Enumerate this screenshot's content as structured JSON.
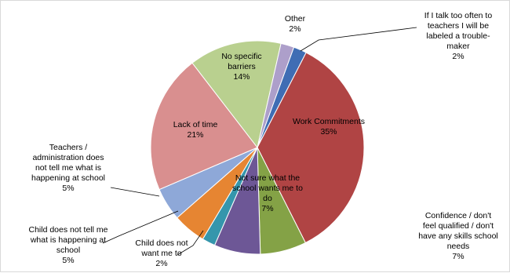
{
  "chart_data": {
    "type": "pie",
    "title": "",
    "legend": "none",
    "slices": [
      {
        "name": "If I talk too often to teachers I will be labeled a trouble-maker",
        "label_lines": [
          "If I talk too often to",
          "teachers I will be",
          "labeled a trouble-",
          "maker"
        ],
        "value": 2,
        "value_label": "2%",
        "color": "#3f6db4"
      },
      {
        "name": "Work Commitments",
        "label_lines": [
          "Work Commitments"
        ],
        "value": 35,
        "value_label": "35%",
        "color": "#b04444"
      },
      {
        "name": "Confidence / don't feel qualified / don't have any skills school needs",
        "label_lines": [
          "Confidence / don't",
          "feel qualified / don't",
          "have any skills school",
          "needs"
        ],
        "value": 7,
        "value_label": "7%",
        "color": "#84a246"
      },
      {
        "name": "Not sure what the school wants me to do",
        "label_lines": [
          "Not sure what the",
          "school wants me to",
          "do"
        ],
        "value": 7,
        "value_label": "7%",
        "color": "#6d5796"
      },
      {
        "name": "Child does not want me to",
        "label_lines": [
          "Child does not",
          "want me to"
        ],
        "value": 2,
        "value_label": "2%",
        "color": "#3596ac"
      },
      {
        "name": "Child does not tell me what is happening at school",
        "label_lines": [
          "Child does not tell me",
          "what is happening at",
          "school"
        ],
        "value": 5,
        "value_label": "5%",
        "color": "#e68532"
      },
      {
        "name": "Teachers / administration does not tell me what is happening at school",
        "label_lines": [
          "Teachers /",
          "administration does",
          "not tell me what is",
          "happening at school"
        ],
        "value": 5,
        "value_label": "5%",
        "color": "#8ea8d8"
      },
      {
        "name": "Lack of time",
        "label_lines": [
          "Lack of time"
        ],
        "value": 21,
        "value_label": "21%",
        "color": "#d98f8f"
      },
      {
        "name": "No specific barriers",
        "label_lines": [
          "No specific",
          "barriers"
        ],
        "value": 14,
        "value_label": "14%",
        "color": "#b9d08f"
      },
      {
        "name": "Other",
        "label_lines": [
          "Other"
        ],
        "value": 2,
        "value_label": "2%",
        "color": "#ad9fca"
      }
    ]
  }
}
